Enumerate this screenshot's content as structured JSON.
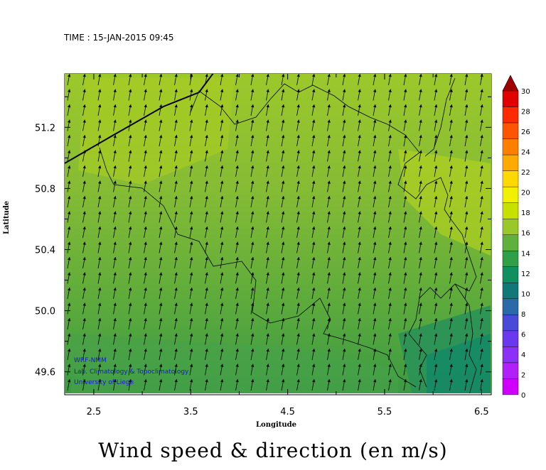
{
  "time_label": "TIME : 15-JAN-2015 09:45",
  "caption": "Wind speed & direction (en m/s)",
  "credits": [
    "WRF-NMM",
    "Lab. Climatology & Topoclimatology",
    "University of Liege"
  ],
  "chart_data": {
    "type": "heatmap",
    "xlabel": "Longitude",
    "ylabel": "Latitude",
    "xlim": [
      2.2,
      6.6
    ],
    "ylim": [
      49.45,
      51.55
    ],
    "x_ticks": [
      "2.5",
      "3.5",
      "4.5",
      "5.5",
      "6.5"
    ],
    "x_tick_values": [
      2.5,
      3.5,
      4.5,
      5.5,
      6.5
    ],
    "y_ticks": [
      "51.2",
      "50.8",
      "50.4",
      "50.0",
      "49.6"
    ],
    "y_tick_values": [
      51.2,
      50.8,
      50.4,
      50.0,
      49.6
    ],
    "colorbar": {
      "labels": [
        "30",
        "28",
        "26",
        "24",
        "22",
        "20",
        "18",
        "16",
        "14",
        "12",
        "10",
        "8",
        "6",
        "4",
        "2",
        "0"
      ],
      "values": [
        30,
        28,
        26,
        24,
        22,
        20,
        18,
        16,
        14,
        12,
        10,
        8,
        6,
        4,
        2,
        0
      ],
      "colors": [
        "#a00000",
        "#e00000",
        "#ff2a00",
        "#ff5500",
        "#ff8000",
        "#ffaa00",
        "#ffd800",
        "#f0f000",
        "#c8e000",
        "#9ac82a",
        "#60b040",
        "#30a048",
        "#109060",
        "#107878",
        "#2a6aa8",
        "#4a4ad8",
        "#6a38ee",
        "#8a30f8",
        "#b020f8",
        "#d000ff"
      ]
    },
    "wind_direction": "from SSW (towards NNE)",
    "speed_range": [
      10,
      18
    ]
  }
}
